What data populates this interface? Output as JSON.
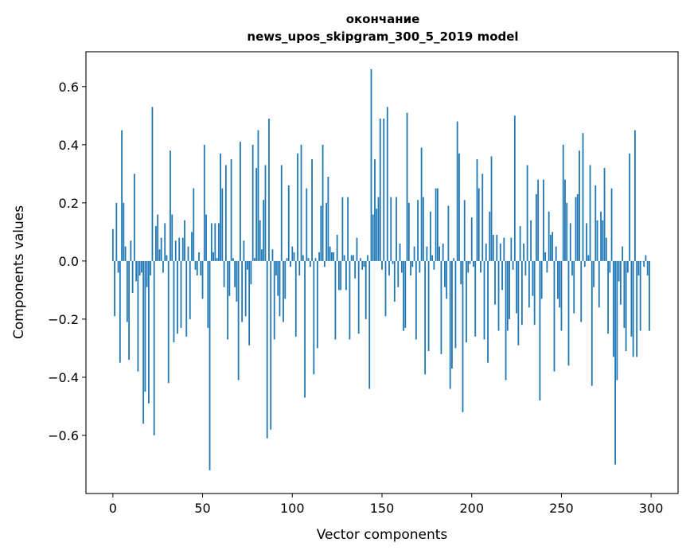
{
  "chart_data": {
    "type": "bar",
    "title": [
      "окончание",
      "news_upos_skipgram_300_5_2019 model"
    ],
    "xlabel": "Vector components",
    "ylabel": "Components values",
    "xlim": [
      -15,
      315
    ],
    "ylim": [
      -0.8,
      0.72
    ],
    "xticks": [
      0,
      50,
      100,
      150,
      200,
      250,
      300
    ],
    "xtick_labels": [
      "0",
      "50",
      "100",
      "150",
      "200",
      "250",
      "300"
    ],
    "yticks": [
      -0.6,
      -0.4,
      -0.2,
      0.0,
      0.2,
      0.4,
      0.6
    ],
    "ytick_labels": [
      "−0.6",
      "−0.4",
      "−0.2",
      "0.0",
      "0.2",
      "0.4",
      "0.6"
    ],
    "grid": false,
    "bar_color": "#1f77b4",
    "values": [
      0.11,
      -0.19,
      0.2,
      -0.04,
      -0.35,
      0.45,
      0.2,
      0.05,
      -0.21,
      -0.34,
      0.07,
      -0.11,
      0.3,
      -0.07,
      -0.38,
      -0.05,
      -0.04,
      -0.56,
      -0.45,
      -0.09,
      -0.49,
      -0.05,
      0.53,
      -0.6,
      0.12,
      0.16,
      0.04,
      0.08,
      -0.04,
      0.13,
      0.02,
      -0.42,
      0.38,
      0.16,
      -0.28,
      0.07,
      -0.25,
      0.08,
      -0.23,
      0.08,
      0.14,
      -0.26,
      0.05,
      -0.2,
      0.1,
      0.25,
      -0.03,
      -0.05,
      0.03,
      -0.05,
      -0.13,
      0.4,
      0.16,
      -0.23,
      -0.72,
      0.13,
      0.03,
      0.13,
      0.01,
      0.13,
      0.37,
      0.25,
      -0.09,
      0.33,
      -0.27,
      -0.12,
      0.35,
      0.01,
      -0.09,
      -0.14,
      -0.41,
      0.41,
      -0.21,
      0.07,
      -0.19,
      -0.03,
      -0.29,
      -0.08,
      0.4,
      0.01,
      0.32,
      0.45,
      0.14,
      0.04,
      0.21,
      0.33,
      -0.61,
      0.49,
      -0.58,
      0.04,
      -0.27,
      -0.05,
      -0.12,
      -0.19,
      0.33,
      -0.21,
      -0.13,
      0.01,
      0.26,
      -0.02,
      0.05,
      0.03,
      -0.26,
      0.37,
      -0.05,
      0.4,
      0.02,
      -0.47,
      0.25,
      0.01,
      -0.02,
      0.35,
      -0.39,
      0.01,
      -0.3,
      0.03,
      0.19,
      0.4,
      -0.02,
      0.2,
      0.29,
      0.05,
      0.03,
      0.03,
      -0.27,
      0.09,
      -0.1,
      -0.1,
      0.22,
      0.02,
      -0.1,
      0.22,
      -0.27,
      0.02,
      0.02,
      -0.06,
      0.08,
      -0.25,
      0.01,
      -0.03,
      -0.02,
      -0.2,
      0.02,
      -0.44,
      0.66,
      0.16,
      0.35,
      0.18,
      0.22,
      0.49,
      -0.03,
      0.49,
      -0.19,
      0.53,
      -0.05,
      0.22,
      -0.01,
      -0.14,
      0.22,
      -0.09,
      0.06,
      -0.04,
      -0.24,
      -0.23,
      0.51,
      0.2,
      -0.05,
      -0.02,
      0.05,
      -0.27,
      0.21,
      -0.04,
      0.39,
      0.22,
      -0.39,
      0.05,
      -0.31,
      0.17,
      0.02,
      -0.03,
      0.25,
      0.25,
      0.05,
      -0.32,
      0.06,
      -0.09,
      -0.13,
      0.19,
      -0.44,
      -0.37,
      0.01,
      -0.3,
      0.48,
      0.37,
      -0.08,
      -0.52,
      0.21,
      -0.28,
      -0.04,
      -0.01,
      0.15,
      -0.02,
      -0.26,
      0.35,
      0.25,
      -0.04,
      0.3,
      -0.27,
      0.06,
      -0.35,
      0.17,
      0.36,
      0.09,
      -0.15,
      0.09,
      -0.24,
      0.06,
      -0.1,
      0.08,
      -0.41,
      -0.24,
      -0.2,
      0.08,
      -0.03,
      0.5,
      -0.18,
      -0.29,
      0.12,
      -0.22,
      0.06,
      -0.05,
      0.33,
      -0.16,
      0.14,
      -0.12,
      -0.22,
      0.23,
      0.28,
      -0.48,
      -0.13,
      0.28,
      0.03,
      -0.04,
      0.17,
      0.09,
      0.1,
      -0.38,
      0.05,
      -0.13,
      -0.16,
      -0.24,
      0.4,
      0.28,
      0.2,
      -0.36,
      0.13,
      -0.05,
      -0.18,
      0.22,
      0.23,
      0.38,
      -0.21,
      0.44,
      -0.02,
      0.13,
      0.02,
      0.33,
      -0.43,
      -0.09,
      0.26,
      0.14,
      -0.16,
      0.17,
      0.14,
      0.32,
      0.08,
      -0.25,
      -0.04,
      0.25,
      -0.33,
      -0.7,
      -0.41,
      -0.07,
      -0.15,
      0.05,
      -0.23,
      -0.31,
      -0.04,
      0.37,
      -0.26,
      -0.33,
      0.45,
      -0.33,
      -0.05,
      -0.24,
      0.0,
      -0.02,
      0.02,
      -0.05,
      -0.24
    ]
  }
}
